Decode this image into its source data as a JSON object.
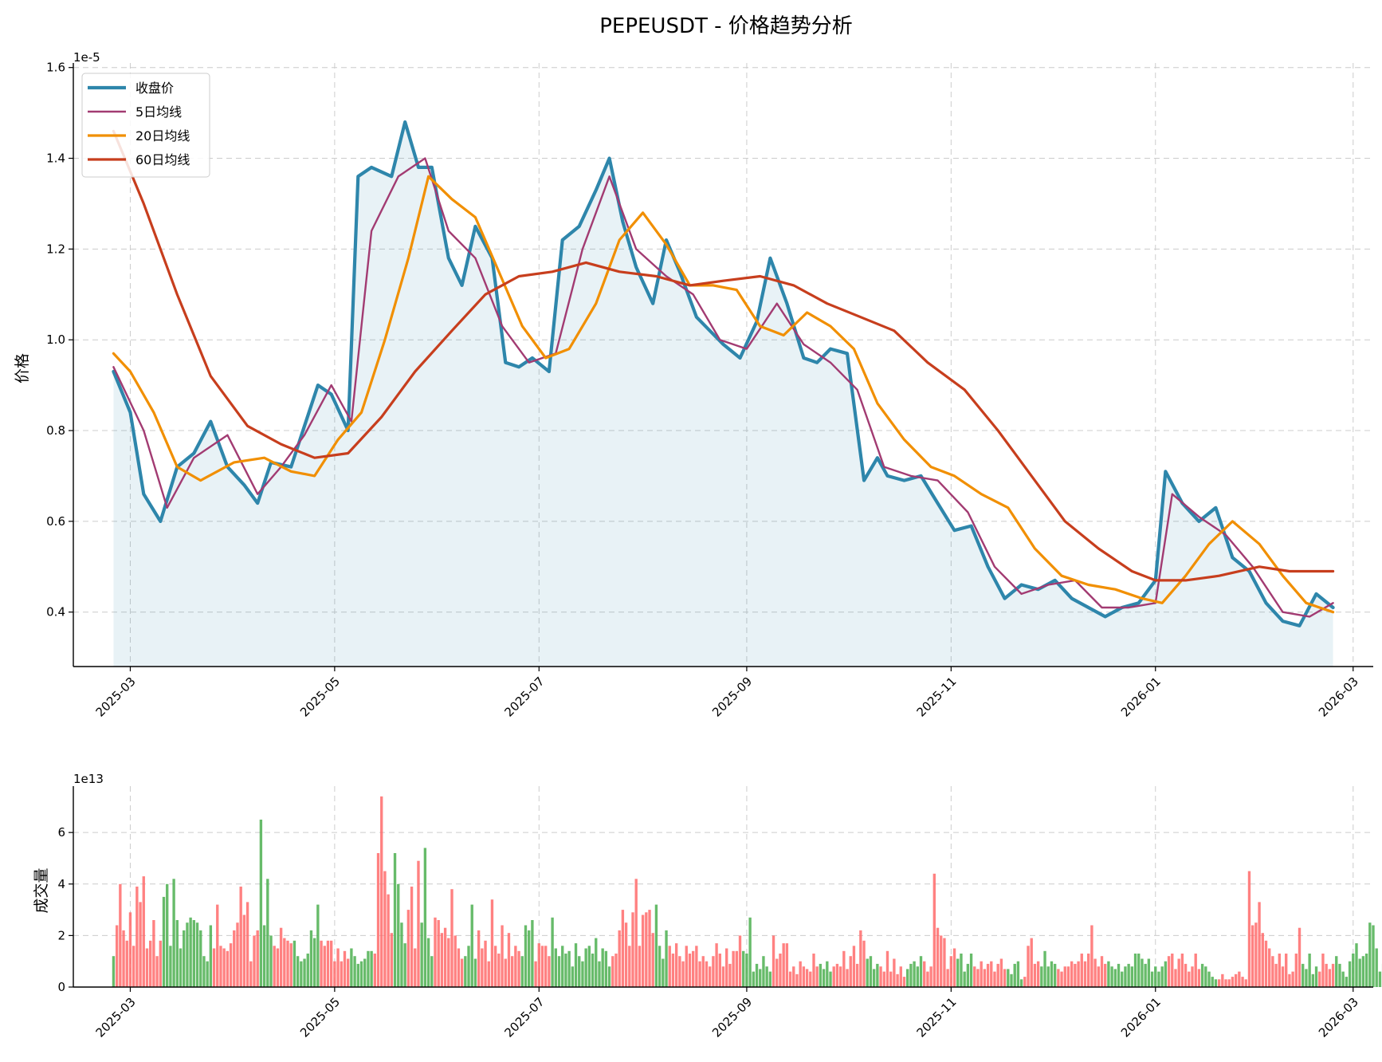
{
  "chart_data": [
    {
      "type": "line",
      "title": "PEPEUSDT - 价格趋势分析",
      "ylabel": "价格",
      "xlabel": "",
      "y_scale_label": "1e-5",
      "ylim": [
        0.28,
        1.61
      ],
      "yticks": [
        0.4,
        0.6,
        0.8,
        1.0,
        1.2,
        1.4,
        1.6
      ],
      "xlim": [
        "2025-02-12",
        "2026-03-07"
      ],
      "xticks": [
        "2025-03",
        "2025-05",
        "2025-07",
        "2025-09",
        "2025-11",
        "2026-01",
        "2026-03"
      ],
      "grid": true,
      "legend_position": "top-left",
      "series": [
        {
          "name": "收盘价",
          "color": "#2E86AB",
          "x": [
            "2025-02-24",
            "2025-03-01",
            "2025-03-05",
            "2025-03-10",
            "2025-03-15",
            "2025-03-20",
            "2025-03-25",
            "2025-03-30",
            "2025-04-04",
            "2025-04-08",
            "2025-04-12",
            "2025-04-18",
            "2025-04-22",
            "2025-04-26",
            "2025-04-30",
            "2025-05-05",
            "2025-05-08",
            "2025-05-12",
            "2025-05-18",
            "2025-05-22",
            "2025-05-26",
            "2025-05-30",
            "2025-06-04",
            "2025-06-08",
            "2025-06-12",
            "2025-06-17",
            "2025-06-21",
            "2025-06-25",
            "2025-06-29",
            "2025-07-04",
            "2025-07-08",
            "2025-07-13",
            "2025-07-18",
            "2025-07-22",
            "2025-07-26",
            "2025-07-30",
            "2025-08-04",
            "2025-08-08",
            "2025-08-12",
            "2025-08-17",
            "2025-08-21",
            "2025-08-25",
            "2025-08-30",
            "2025-09-04",
            "2025-09-08",
            "2025-09-13",
            "2025-09-18",
            "2025-09-22",
            "2025-09-26",
            "2025-10-01",
            "2025-10-06",
            "2025-10-10",
            "2025-10-13",
            "2025-10-18",
            "2025-10-23",
            "2025-10-28",
            "2025-11-02",
            "2025-11-07",
            "2025-11-12",
            "2025-11-17",
            "2025-11-22",
            "2025-11-27",
            "2025-12-02",
            "2025-12-07",
            "2025-12-12",
            "2025-12-17",
            "2025-12-22",
            "2025-12-27",
            "2026-01-01",
            "2026-01-04",
            "2026-01-09",
            "2026-01-14",
            "2026-01-19",
            "2026-01-24",
            "2026-01-29",
            "2026-02-03",
            "2026-02-08",
            "2026-02-13",
            "2026-02-18",
            "2026-02-23"
          ],
          "values": [
            0.93,
            0.84,
            0.66,
            0.6,
            0.72,
            0.75,
            0.82,
            0.72,
            0.68,
            0.64,
            0.73,
            0.72,
            0.81,
            0.9,
            0.88,
            0.8,
            1.36,
            1.38,
            1.36,
            1.48,
            1.38,
            1.38,
            1.18,
            1.12,
            1.25,
            1.18,
            0.95,
            0.94,
            0.96,
            0.93,
            1.22,
            1.25,
            1.33,
            1.4,
            1.26,
            1.16,
            1.08,
            1.22,
            1.15,
            1.05,
            1.02,
            0.99,
            0.96,
            1.04,
            1.18,
            1.08,
            0.96,
            0.95,
            0.98,
            0.97,
            0.69,
            0.74,
            0.7,
            0.69,
            0.7,
            0.64,
            0.58,
            0.59,
            0.5,
            0.43,
            0.46,
            0.45,
            0.47,
            0.43,
            0.41,
            0.39,
            0.41,
            0.42,
            0.47,
            0.71,
            0.64,
            0.6,
            0.63,
            0.52,
            0.49,
            0.42,
            0.38,
            0.37,
            0.44,
            0.41
          ]
        },
        {
          "name": "5日均线",
          "color": "#A23B72",
          "x": [
            "2025-02-24",
            "2025-03-05",
            "2025-03-12",
            "2025-03-20",
            "2025-03-30",
            "2025-04-08",
            "2025-04-15",
            "2025-04-22",
            "2025-04-30",
            "2025-05-06",
            "2025-05-12",
            "2025-05-20",
            "2025-05-28",
            "2025-06-04",
            "2025-06-12",
            "2025-06-20",
            "2025-06-28",
            "2025-07-06",
            "2025-07-14",
            "2025-07-22",
            "2025-07-30",
            "2025-08-08",
            "2025-08-16",
            "2025-08-24",
            "2025-09-01",
            "2025-09-10",
            "2025-09-18",
            "2025-09-26",
            "2025-10-04",
            "2025-10-12",
            "2025-10-20",
            "2025-10-28",
            "2025-11-06",
            "2025-11-14",
            "2025-11-22",
            "2025-11-30",
            "2025-12-08",
            "2025-12-16",
            "2025-12-24",
            "2026-01-01",
            "2026-01-06",
            "2026-01-14",
            "2026-01-22",
            "2026-01-30",
            "2026-02-08",
            "2026-02-16",
            "2026-02-23"
          ],
          "values": [
            0.94,
            0.8,
            0.63,
            0.74,
            0.79,
            0.66,
            0.72,
            0.79,
            0.9,
            0.82,
            1.24,
            1.36,
            1.4,
            1.24,
            1.18,
            1.03,
            0.95,
            0.97,
            1.2,
            1.36,
            1.2,
            1.14,
            1.1,
            1.0,
            0.98,
            1.08,
            0.99,
            0.95,
            0.89,
            0.72,
            0.7,
            0.69,
            0.62,
            0.5,
            0.44,
            0.46,
            0.47,
            0.41,
            0.41,
            0.42,
            0.66,
            0.61,
            0.57,
            0.5,
            0.4,
            0.39,
            0.42
          ]
        },
        {
          "name": "20日均线",
          "color": "#F18F01",
          "x": [
            "2025-02-24",
            "2025-03-01",
            "2025-03-08",
            "2025-03-15",
            "2025-03-22",
            "2025-04-01",
            "2025-04-10",
            "2025-04-18",
            "2025-04-25",
            "2025-05-02",
            "2025-05-09",
            "2025-05-16",
            "2025-05-23",
            "2025-05-29",
            "2025-06-05",
            "2025-06-12",
            "2025-06-19",
            "2025-06-26",
            "2025-07-03",
            "2025-07-10",
            "2025-07-18",
            "2025-07-25",
            "2025-08-01",
            "2025-08-08",
            "2025-08-15",
            "2025-08-22",
            "2025-08-29",
            "2025-09-05",
            "2025-09-12",
            "2025-09-19",
            "2025-09-26",
            "2025-10-03",
            "2025-10-10",
            "2025-10-18",
            "2025-10-26",
            "2025-11-02",
            "2025-11-10",
            "2025-11-18",
            "2025-11-26",
            "2025-12-04",
            "2025-12-12",
            "2025-12-20",
            "2025-12-28",
            "2026-01-03",
            "2026-01-10",
            "2026-01-17",
            "2026-01-24",
            "2026-02-01",
            "2026-02-08",
            "2026-02-15",
            "2026-02-23"
          ],
          "values": [
            0.97,
            0.93,
            0.84,
            0.72,
            0.69,
            0.73,
            0.74,
            0.71,
            0.7,
            0.78,
            0.84,
            1.0,
            1.18,
            1.36,
            1.31,
            1.27,
            1.15,
            1.03,
            0.96,
            0.98,
            1.08,
            1.22,
            1.28,
            1.21,
            1.12,
            1.12,
            1.11,
            1.03,
            1.01,
            1.06,
            1.03,
            0.98,
            0.86,
            0.78,
            0.72,
            0.7,
            0.66,
            0.63,
            0.54,
            0.48,
            0.46,
            0.45,
            0.43,
            0.42,
            0.48,
            0.55,
            0.6,
            0.55,
            0.48,
            0.42,
            0.4
          ]
        },
        {
          "name": "60日均线",
          "color": "#C73E1D",
          "x": [
            "2025-02-24",
            "2025-03-05",
            "2025-03-15",
            "2025-03-25",
            "2025-04-05",
            "2025-04-15",
            "2025-04-25",
            "2025-05-05",
            "2025-05-15",
            "2025-05-25",
            "2025-06-05",
            "2025-06-15",
            "2025-06-25",
            "2025-07-05",
            "2025-07-15",
            "2025-07-25",
            "2025-08-05",
            "2025-08-15",
            "2025-08-25",
            "2025-09-05",
            "2025-09-15",
            "2025-09-25",
            "2025-10-05",
            "2025-10-15",
            "2025-10-25",
            "2025-11-05",
            "2025-11-15",
            "2025-11-25",
            "2025-12-05",
            "2025-12-15",
            "2025-12-25",
            "2026-01-01",
            "2026-01-10",
            "2026-01-20",
            "2026-02-01",
            "2026-02-10",
            "2026-02-23"
          ],
          "values": [
            1.46,
            1.3,
            1.1,
            0.92,
            0.81,
            0.77,
            0.74,
            0.75,
            0.83,
            0.93,
            1.02,
            1.1,
            1.14,
            1.15,
            1.17,
            1.15,
            1.14,
            1.12,
            1.13,
            1.14,
            1.12,
            1.08,
            1.05,
            1.02,
            0.95,
            0.89,
            0.8,
            0.7,
            0.6,
            0.54,
            0.49,
            0.47,
            0.47,
            0.48,
            0.5,
            0.49,
            0.49
          ]
        }
      ]
    },
    {
      "type": "bar",
      "title": "",
      "ylabel": "成交量",
      "xlabel": "",
      "y_scale_label": "1e13",
      "ylim": [
        0,
        7.8
      ],
      "yticks": [
        0,
        2,
        4,
        6
      ],
      "xlim": [
        "2025-02-12",
        "2026-03-07"
      ],
      "xticks": [
        "2025-03",
        "2025-05",
        "2025-07",
        "2025-09",
        "2025-11",
        "2026-01",
        "2026-03"
      ],
      "grid": true,
      "up_color": "#4CAF50",
      "down_color": "#FF6B6B",
      "bars": {
        "start": "2025-02-24",
        "values": [
          1.2,
          2.4,
          4.0,
          2.2,
          1.8,
          2.9,
          1.6,
          3.9,
          3.3,
          4.3,
          1.5,
          1.8,
          2.6,
          1.2,
          1.8,
          3.5,
          4.0,
          1.6,
          4.2,
          2.6,
          1.5,
          2.2,
          2.5,
          2.7,
          2.6,
          2.5,
          2.2,
          1.2,
          1.0,
          2.4,
          1.5,
          3.2,
          1.6,
          1.5,
          1.4,
          1.7,
          2.2,
          2.5,
          3.9,
          2.8,
          3.3,
          1.0,
          2.0,
          2.2,
          6.5,
          2.4,
          4.2,
          2.0,
          1.6,
          1.5,
          2.3,
          1.9,
          1.8,
          1.7,
          1.8,
          1.2,
          1.0,
          1.1,
          1.3,
          2.2,
          1.9,
          3.2,
          1.8,
          1.6,
          1.8,
          1.8,
          1.0,
          1.5,
          1.0,
          1.4,
          1.1,
          1.5,
          1.2,
          0.9,
          1.0,
          1.1,
          1.4,
          1.4,
          1.3,
          5.2,
          7.4,
          4.5,
          3.6,
          2.1,
          5.2,
          4.0,
          2.5,
          1.7,
          3.0,
          3.9,
          1.5,
          4.9,
          2.5,
          5.4,
          1.9,
          1.2,
          2.7,
          2.6,
          2.1,
          2.3,
          1.9,
          3.8,
          2.0,
          1.5,
          1.1,
          1.2,
          1.6,
          3.2,
          1.1,
          2.2,
          1.5,
          1.8,
          1.0,
          3.4,
          1.6,
          1.3,
          2.4,
          1.1,
          2.1,
          1.2,
          1.6,
          1.4,
          1.2,
          2.4,
          2.2,
          2.6,
          1.0,
          1.7,
          1.6,
          1.6,
          1.2,
          2.7,
          1.5,
          1.2,
          1.6,
          1.3,
          1.4,
          0.8,
          1.7,
          1.2,
          1.0,
          1.5,
          1.6,
          1.3,
          1.9,
          1.0,
          1.5,
          1.4,
          0.8,
          1.2,
          1.3,
          2.2,
          3.0,
          2.5,
          1.6,
          2.9,
          4.2,
          1.6,
          2.8,
          2.9,
          3.0,
          2.1,
          3.2,
          1.6,
          1.1,
          2.2,
          1.6,
          1.3,
          1.7,
          1.2,
          1.0,
          1.6,
          1.3,
          1.4,
          1.6,
          1.0,
          1.2,
          1.0,
          0.8,
          1.2,
          1.7,
          1.3,
          0.8,
          1.5,
          0.9,
          1.4,
          1.4,
          2.0,
          1.4,
          1.3,
          2.7,
          0.6,
          0.9,
          0.7,
          1.2,
          0.8,
          0.6,
          2.0,
          1.1,
          1.3,
          1.7,
          1.7,
          0.6,
          0.8,
          0.5,
          1.0,
          0.8,
          0.7,
          0.6,
          1.3,
          0.8,
          0.9,
          0.7,
          1.0,
          0.6,
          0.8,
          0.9,
          0.8,
          1.4,
          0.7,
          1.2,
          1.6,
          0.9,
          2.2,
          1.8,
          1.1,
          1.2,
          0.7,
          0.9,
          0.8,
          0.6,
          1.4,
          0.6,
          1.1,
          0.5,
          0.8,
          0.4,
          0.7,
          0.9,
          1.0,
          0.8,
          1.2,
          1.0,
          0.6,
          0.8,
          4.4,
          2.3,
          2.0,
          1.9,
          0.7,
          1.2,
          1.5,
          1.1,
          1.3,
          0.6,
          0.9,
          1.3,
          0.8,
          0.7,
          1.0,
          0.7,
          0.9,
          1.0,
          0.6,
          0.9,
          1.1,
          0.7,
          0.7,
          0.5,
          0.9,
          1.0,
          0.3,
          0.4,
          1.6,
          1.9,
          0.9,
          1.0,
          0.8,
          1.4,
          0.8,
          1.0,
          0.9,
          0.7,
          0.6,
          0.8,
          0.8,
          1.0,
          0.9,
          1.0,
          1.3,
          1.0,
          1.3,
          2.4,
          1.1,
          0.8,
          1.2,
          0.9,
          1.0,
          0.8,
          0.7,
          0.9,
          0.6,
          0.8,
          0.9,
          0.8,
          1.3,
          1.3,
          1.1,
          0.9,
          1.1,
          0.6,
          0.8,
          0.6,
          0.8,
          1.0,
          1.2,
          1.3,
          0.7,
          1.1,
          1.3,
          0.9,
          0.6,
          0.8,
          1.3,
          0.7,
          0.9,
          0.8,
          0.6,
          0.4,
          0.3,
          0.3,
          0.5,
          0.3,
          0.3,
          0.4,
          0.5,
          0.6,
          0.4,
          0.3,
          4.5,
          2.4,
          2.5,
          3.3,
          2.1,
          1.8,
          1.5,
          1.2,
          0.9,
          1.3,
          0.8,
          1.3,
          0.5,
          0.6,
          1.3,
          2.3,
          0.9,
          0.7,
          1.3,
          0.5,
          0.8,
          0.6,
          1.3,
          0.9,
          0.7,
          0.9,
          1.2,
          0.9,
          0.6,
          0.4,
          1.0,
          1.3,
          1.7,
          1.1,
          1.2,
          1.3,
          2.5,
          2.4,
          1.5,
          0.6,
          0.9,
          0.7,
          0.8,
          0.6,
          0.8,
          0.7,
          0.8,
          0.6,
          2.2,
          2.3,
          0.9,
          0.8,
          0.7,
          0.7,
          1.0,
          0.9,
          0.6,
          0.7,
          0.5,
          1.0
        ]
      }
    }
  ]
}
